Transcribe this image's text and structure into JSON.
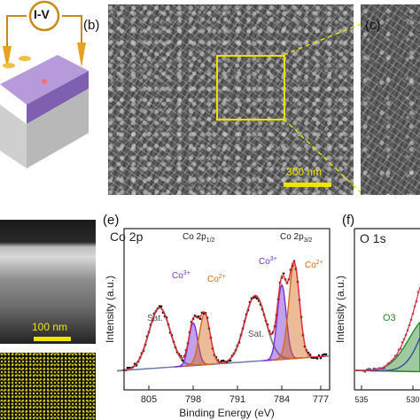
{
  "panel_a": {
    "iv_label": "I-V"
  },
  "panel_b": {
    "label": "(b)",
    "scale_bar": "300 nm"
  },
  "panel_c": {
    "label": "(c)"
  },
  "panel_d": {
    "scale_bar": "100 nm"
  },
  "panel_e": {
    "label": "(e)",
    "spectrum_title": "Co 2p",
    "peak_left": "Co 2p1/2",
    "peak_right": "Co 2p3/2",
    "species": [
      "Co3+",
      "Co2+",
      "Co3+",
      "Co2+"
    ],
    "sat_labels": [
      "Sat.",
      "Sat."
    ],
    "xlabel": "Binding Energy (eV)",
    "ylabel": "Intensity (a.u.)",
    "xticks": [
      "805",
      "798",
      "791",
      "784",
      "777"
    ]
  },
  "panel_f": {
    "label": "(f)",
    "spectrum_title": "O 1s",
    "ylabel": "Intensity (a.u.)",
    "component": "O3",
    "xticks": [
      "535",
      "530"
    ]
  },
  "colors": {
    "co3": "#7a2fd0",
    "co2": "#d46a1a",
    "sat": "#8a8a8a",
    "fit": "#e0303a",
    "data": "#111111",
    "o3": "#2a8a2a",
    "scale_bar": "#f2e400",
    "zoom_box": "#e8e100"
  }
}
